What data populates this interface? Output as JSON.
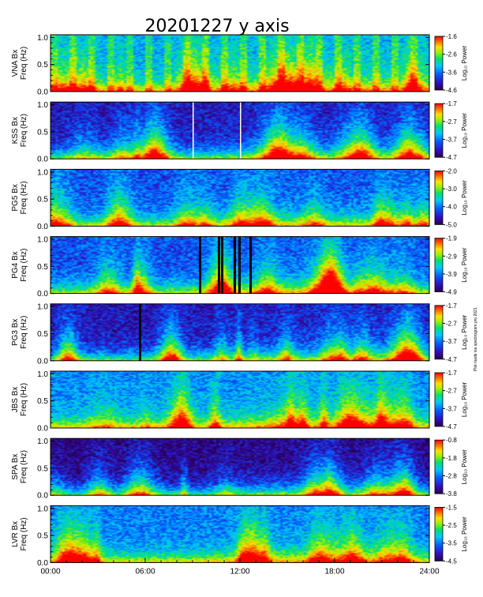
{
  "title": "20201227 y axis",
  "side_note": "Plot made via spectrogram.pro 2021",
  "time_axis": {
    "ticks": [
      "00:00",
      "06:00",
      "12:00",
      "18:00",
      "24:00"
    ],
    "range_hours": [
      0,
      24
    ]
  },
  "chart_data": [
    {
      "type": "heatmap",
      "station": "VNA",
      "ylabel": "VNA Bx\nFreq (Hz)",
      "y_ticks": [
        "0.0",
        "0.5",
        "1.0"
      ],
      "ylim": [
        0,
        1.05
      ],
      "colorbar_label": "Log₁₀ Power",
      "colorbar_ticks": [
        "-1.6",
        "-2.6",
        "-3.6",
        "-4.6"
      ],
      "clim": [
        -4.6,
        -1.6
      ],
      "base_level": 0.35,
      "gaps_hours": []
    },
    {
      "type": "heatmap",
      "station": "KSS",
      "ylabel": "KSS Bx\nFreq (Hz)",
      "y_ticks": [
        "0.0",
        "0.5",
        "1.0"
      ],
      "ylim": [
        0,
        1.05
      ],
      "colorbar_label": "Log₁₀ Power",
      "colorbar_ticks": [
        "-1.7",
        "-2.7",
        "-3.7",
        "-4.7"
      ],
      "clim": [
        -4.7,
        -1.7
      ],
      "base_level": 0.12,
      "gaps_hours": [
        9.0,
        12.0
      ]
    },
    {
      "type": "heatmap",
      "station": "PG5",
      "ylabel": "PG5 Bx\nFreq (Hz)",
      "y_ticks": [
        "0.0",
        "0.5",
        "1.0"
      ],
      "ylim": [
        0,
        1.05
      ],
      "colorbar_label": "Log₁₀ Power",
      "colorbar_ticks": [
        "-2.0",
        "-3.0",
        "-4.0",
        "-5.0"
      ],
      "clim": [
        -5.0,
        -2.0
      ],
      "base_level": 0.22,
      "gaps_hours": []
    },
    {
      "type": "heatmap",
      "station": "PG4",
      "ylabel": "PG4 Bx\nFreq (Hz)",
      "y_ticks": [
        "0.0",
        "0.5",
        "1.0"
      ],
      "ylim": [
        0,
        1.05
      ],
      "colorbar_label": "Log₁₀ Power",
      "colorbar_ticks": [
        "-1.9",
        "-2.9",
        "-3.9",
        "-4.9"
      ],
      "clim": [
        -4.9,
        -1.9
      ],
      "base_level": 0.22,
      "gaps_hours": [
        9.4,
        10.6,
        10.8,
        11.6,
        11.9,
        12.6
      ]
    },
    {
      "type": "heatmap",
      "station": "PG3",
      "ylabel": "PG3 Bx\nFreq (Hz)",
      "y_ticks": [
        "0.0",
        "0.5",
        "1.0"
      ],
      "ylim": [
        0,
        1.05
      ],
      "colorbar_label": "Log₁₀ Power",
      "colorbar_ticks": [
        "-1.7",
        "-2.7",
        "-3.7",
        "-4.7"
      ],
      "clim": [
        -4.7,
        -1.7
      ],
      "base_level": 0.12,
      "gaps_hours": [
        5.6
      ]
    },
    {
      "type": "heatmap",
      "station": "JBS",
      "ylabel": "JBS Bx\nFreq (Hz)",
      "y_ticks": [
        "0.0",
        "0.5",
        "1.0"
      ],
      "ylim": [
        0,
        1.05
      ],
      "colorbar_label": "Log₁₀ Power",
      "colorbar_ticks": [
        "-1.7",
        "-2.7",
        "-3.7",
        "-4.7"
      ],
      "clim": [
        -4.7,
        -1.7
      ],
      "base_level": 0.3,
      "gaps_hours": []
    },
    {
      "type": "heatmap",
      "station": "SPA",
      "ylabel": "SPA Bx\nFreq (Hz)",
      "y_ticks": [
        "0.0",
        "0.5",
        "1.0"
      ],
      "ylim": [
        0,
        1.05
      ],
      "colorbar_label": "Log₁₀ Power",
      "colorbar_ticks": [
        "-0.8",
        "-1.8",
        "-2.8",
        "-3.8"
      ],
      "clim": [
        -3.8,
        -0.8
      ],
      "base_level": 0.05,
      "gaps_hours": []
    },
    {
      "type": "heatmap",
      "station": "LVR",
      "ylabel": "LVR Bx\nFreq (Hz)",
      "y_ticks": [
        "0.0",
        "0.5",
        "1.0"
      ],
      "ylim": [
        0,
        1.05
      ],
      "colorbar_label": "Log₁₀ Power",
      "colorbar_ticks": [
        "-1.5",
        "-2.5",
        "-3.5",
        "-4.5"
      ],
      "clim": [
        -4.5,
        -1.5
      ],
      "base_level": 0.28,
      "gaps_hours": []
    }
  ]
}
